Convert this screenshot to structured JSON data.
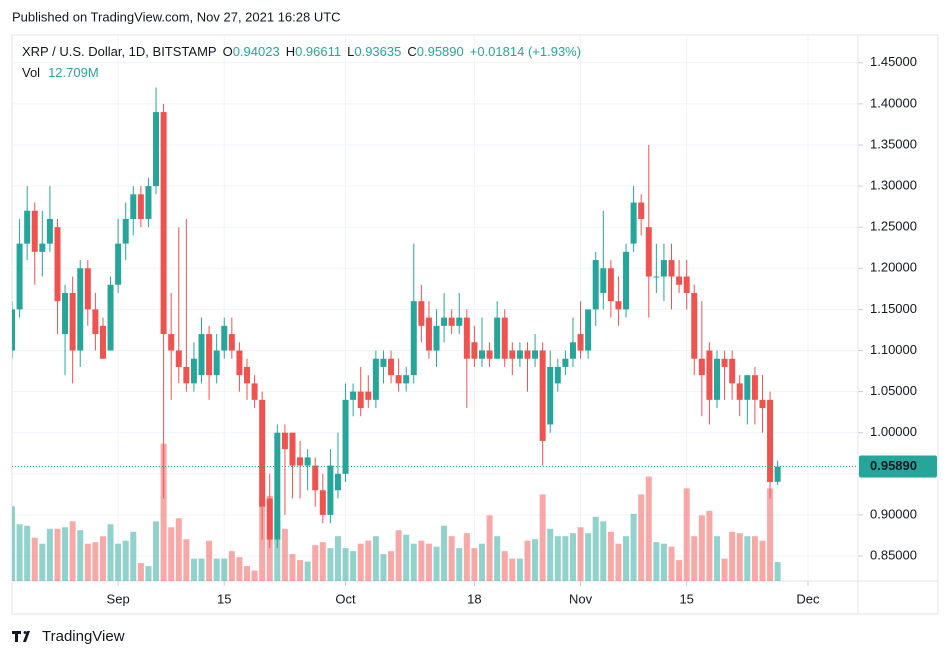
{
  "header": {
    "published": "Published on TradingView.com, Nov 27, 2021 16:28 UTC"
  },
  "footer": {
    "brand": "TradingView"
  },
  "chart_data": {
    "type": "candlestick",
    "legend": {
      "symbol": "XRP / U.S. Dollar, 1D, BITSTAMP",
      "o_label": "O",
      "o": "0.94023",
      "h_label": "H",
      "h": "0.96611",
      "l_label": "L",
      "l": "0.93635",
      "c_label": "C",
      "c": "0.95890",
      "change": "+0.01814 (+1.93%)",
      "vol_label": "Vol",
      "vol": "12.709M"
    },
    "last_price_label": "0.95890",
    "up_color": "#26a69a",
    "down_color": "#ef5350",
    "open": [
      1.1,
      1.15,
      1.23,
      1.27,
      1.22,
      1.23,
      1.25,
      1.12,
      1.17,
      1.1,
      1.2,
      1.15,
      1.13,
      1.1,
      1.18,
      1.23,
      1.26,
      1.29,
      1.26,
      1.3,
      1.39,
      1.12,
      1.1,
      1.08,
      1.06,
      1.07,
      1.12,
      1.07,
      1.1,
      1.12,
      1.1,
      1.08,
      1.06,
      1.04,
      0.92,
      0.87,
      1.0,
      1.0,
      0.97,
      0.96,
      0.96,
      0.93,
      0.9,
      0.93,
      0.95,
      1.04,
      1.05,
      1.05,
      1.04,
      1.08,
      1.09,
      1.07,
      1.06,
      1.07,
      1.16,
      1.14,
      1.1,
      1.13,
      1.14,
      1.13,
      1.14,
      1.11,
      1.09,
      1.1,
      1.09,
      1.14,
      1.1,
      1.09,
      1.1,
      1.09,
      1.1,
      1.01,
      1.06,
      1.08,
      1.09,
      1.12,
      1.1,
      1.15,
      1.17,
      1.2,
      1.16,
      1.15,
      1.23,
      1.28,
      1.25,
      1.19,
      1.19,
      1.21,
      1.19,
      1.19,
      1.17,
      1.09,
      1.1,
      1.04,
      1.09,
      1.09,
      1.06,
      1.04,
      1.07,
      1.04,
      1.04,
      0.94023
    ],
    "high": [
      1.16,
      1.26,
      1.3,
      1.28,
      1.27,
      1.3,
      1.26,
      1.18,
      1.19,
      1.21,
      1.21,
      1.17,
      1.14,
      1.19,
      1.26,
      1.28,
      1.3,
      1.3,
      1.31,
      1.42,
      1.4,
      1.17,
      1.25,
      1.26,
      1.11,
      1.14,
      1.13,
      1.12,
      1.14,
      1.14,
      1.11,
      1.09,
      1.07,
      1.05,
      0.95,
      1.01,
      1.01,
      1.0,
      0.99,
      0.98,
      0.97,
      0.95,
      0.98,
      1.0,
      1.06,
      1.06,
      1.08,
      1.07,
      1.1,
      1.1,
      1.1,
      1.09,
      1.08,
      1.23,
      1.18,
      1.16,
      1.15,
      1.17,
      1.15,
      1.17,
      1.15,
      1.13,
      1.14,
      1.11,
      1.16,
      1.15,
      1.11,
      1.11,
      1.11,
      1.12,
      1.11,
      1.1,
      1.09,
      1.1,
      1.14,
      1.16,
      1.15,
      1.22,
      1.27,
      1.21,
      1.19,
      1.23,
      1.3,
      1.29,
      1.35,
      1.23,
      1.23,
      1.23,
      1.21,
      1.21,
      1.18,
      1.16,
      1.11,
      1.1,
      1.1,
      1.1,
      1.07,
      1.07,
      1.08,
      1.07,
      1.05,
      0.96611
    ],
    "low": [
      1.09,
      1.14,
      1.21,
      1.18,
      1.19,
      1.22,
      1.12,
      1.07,
      1.06,
      1.08,
      1.13,
      1.1,
      1.09,
      1.1,
      1.17,
      1.21,
      1.24,
      1.25,
      1.25,
      1.29,
      0.92,
      1.04,
      1.06,
      1.05,
      1.05,
      1.06,
      1.04,
      1.06,
      1.09,
      1.09,
      1.05,
      1.04,
      1.03,
      0.87,
      0.86,
      0.86,
      0.9,
      0.92,
      0.92,
      0.93,
      0.91,
      0.89,
      0.89,
      0.92,
      0.94,
      1.02,
      1.02,
      1.03,
      1.03,
      1.06,
      1.06,
      1.05,
      1.05,
      1.06,
      1.11,
      1.09,
      1.08,
      1.11,
      1.12,
      1.12,
      1.03,
      1.08,
      1.08,
      1.08,
      1.09,
      1.08,
      1.07,
      1.08,
      1.05,
      1.08,
      0.96,
      1.0,
      1.05,
      1.07,
      1.08,
      1.09,
      1.09,
      1.13,
      1.15,
      1.14,
      1.13,
      1.14,
      1.22,
      1.24,
      1.14,
      1.17,
      1.16,
      1.15,
      1.17,
      1.15,
      1.07,
      1.02,
      1.01,
      1.03,
      1.04,
      1.04,
      1.02,
      1.01,
      1.01,
      1.0,
      0.92,
      0.93635
    ],
    "close": [
      1.15,
      1.23,
      1.27,
      1.22,
      1.23,
      1.26,
      1.16,
      1.17,
      1.1,
      1.2,
      1.15,
      1.12,
      1.09,
      1.18,
      1.23,
      1.26,
      1.29,
      1.26,
      1.3,
      1.39,
      1.12,
      1.1,
      1.08,
      1.06,
      1.09,
      1.12,
      1.07,
      1.1,
      1.13,
      1.1,
      1.07,
      1.06,
      1.04,
      0.91,
      0.87,
      1.0,
      0.98,
      0.96,
      0.96,
      0.97,
      0.93,
      0.9,
      0.96,
      0.95,
      1.04,
      1.05,
      1.03,
      1.04,
      1.09,
      1.09,
      1.07,
      1.06,
      1.07,
      1.16,
      1.13,
      1.1,
      1.13,
      1.14,
      1.13,
      1.14,
      1.09,
      1.09,
      1.1,
      1.09,
      1.14,
      1.09,
      1.09,
      1.1,
      1.09,
      1.1,
      0.99,
      1.08,
      1.08,
      1.09,
      1.11,
      1.1,
      1.15,
      1.21,
      1.2,
      1.16,
      1.15,
      1.22,
      1.28,
      1.26,
      1.19,
      1.19,
      1.21,
      1.19,
      1.18,
      1.17,
      1.09,
      1.07,
      1.04,
      1.09,
      1.08,
      1.06,
      1.04,
      1.07,
      1.04,
      1.03,
      0.94,
      0.9589
    ],
    "volume": [
      50,
      38,
      37,
      29,
      25,
      35,
      35,
      36,
      40,
      34,
      25,
      26,
      30,
      38,
      25,
      27,
      33,
      12,
      10,
      40,
      92,
      36,
      42,
      28,
      15,
      15,
      27,
      15,
      15,
      20,
      16,
      10,
      7,
      55,
      57,
      40,
      35,
      18,
      14,
      13,
      24,
      26,
      22,
      30,
      22,
      20,
      25,
      27,
      30,
      18,
      20,
      34,
      31,
      25,
      27,
      25,
      23,
      37,
      30,
      22,
      32,
      22,
      25,
      44,
      30,
      20,
      15,
      15,
      27,
      28,
      58,
      35,
      30,
      30,
      32,
      36,
      32,
      43,
      40,
      33,
      25,
      30,
      45,
      58,
      70,
      26,
      25,
      23,
      14,
      62,
      30,
      44,
      47,
      30,
      15,
      33,
      32,
      30,
      30,
      27,
      62,
      12.709
    ],
    "xlim": [
      0,
      111.6
    ],
    "xticks": [
      {
        "value": 14,
        "label": "Sep"
      },
      {
        "value": 28,
        "label": "15"
      },
      {
        "value": 44,
        "label": "Oct"
      },
      {
        "value": 61,
        "label": "18"
      },
      {
        "value": 75,
        "label": "Nov"
      },
      {
        "value": 89,
        "label": "15"
      },
      {
        "value": 105,
        "label": "Dec"
      }
    ],
    "ylim": [
      0.8196,
      1.4838
    ],
    "yticks": [
      {
        "value": 0.85,
        "label": "0.85000"
      },
      {
        "value": 0.9,
        "label": "0.90000"
      },
      {
        "value": 0.95,
        "label": "0.95000"
      },
      {
        "value": 1.0,
        "label": "1.00000"
      },
      {
        "value": 1.05,
        "label": "1.05000"
      },
      {
        "value": 1.1,
        "label": "1.10000"
      },
      {
        "value": 1.15,
        "label": "1.15000"
      },
      {
        "value": 1.2,
        "label": "1.20000"
      },
      {
        "value": 1.25,
        "label": "1.25000"
      },
      {
        "value": 1.3,
        "label": "1.30000"
      },
      {
        "value": 1.35,
        "label": "1.35000"
      },
      {
        "value": 1.4,
        "label": "1.40000"
      },
      {
        "value": 1.45,
        "label": "1.45000"
      }
    ],
    "volume_lim": [
      0,
      140
    ],
    "grid": true
  }
}
